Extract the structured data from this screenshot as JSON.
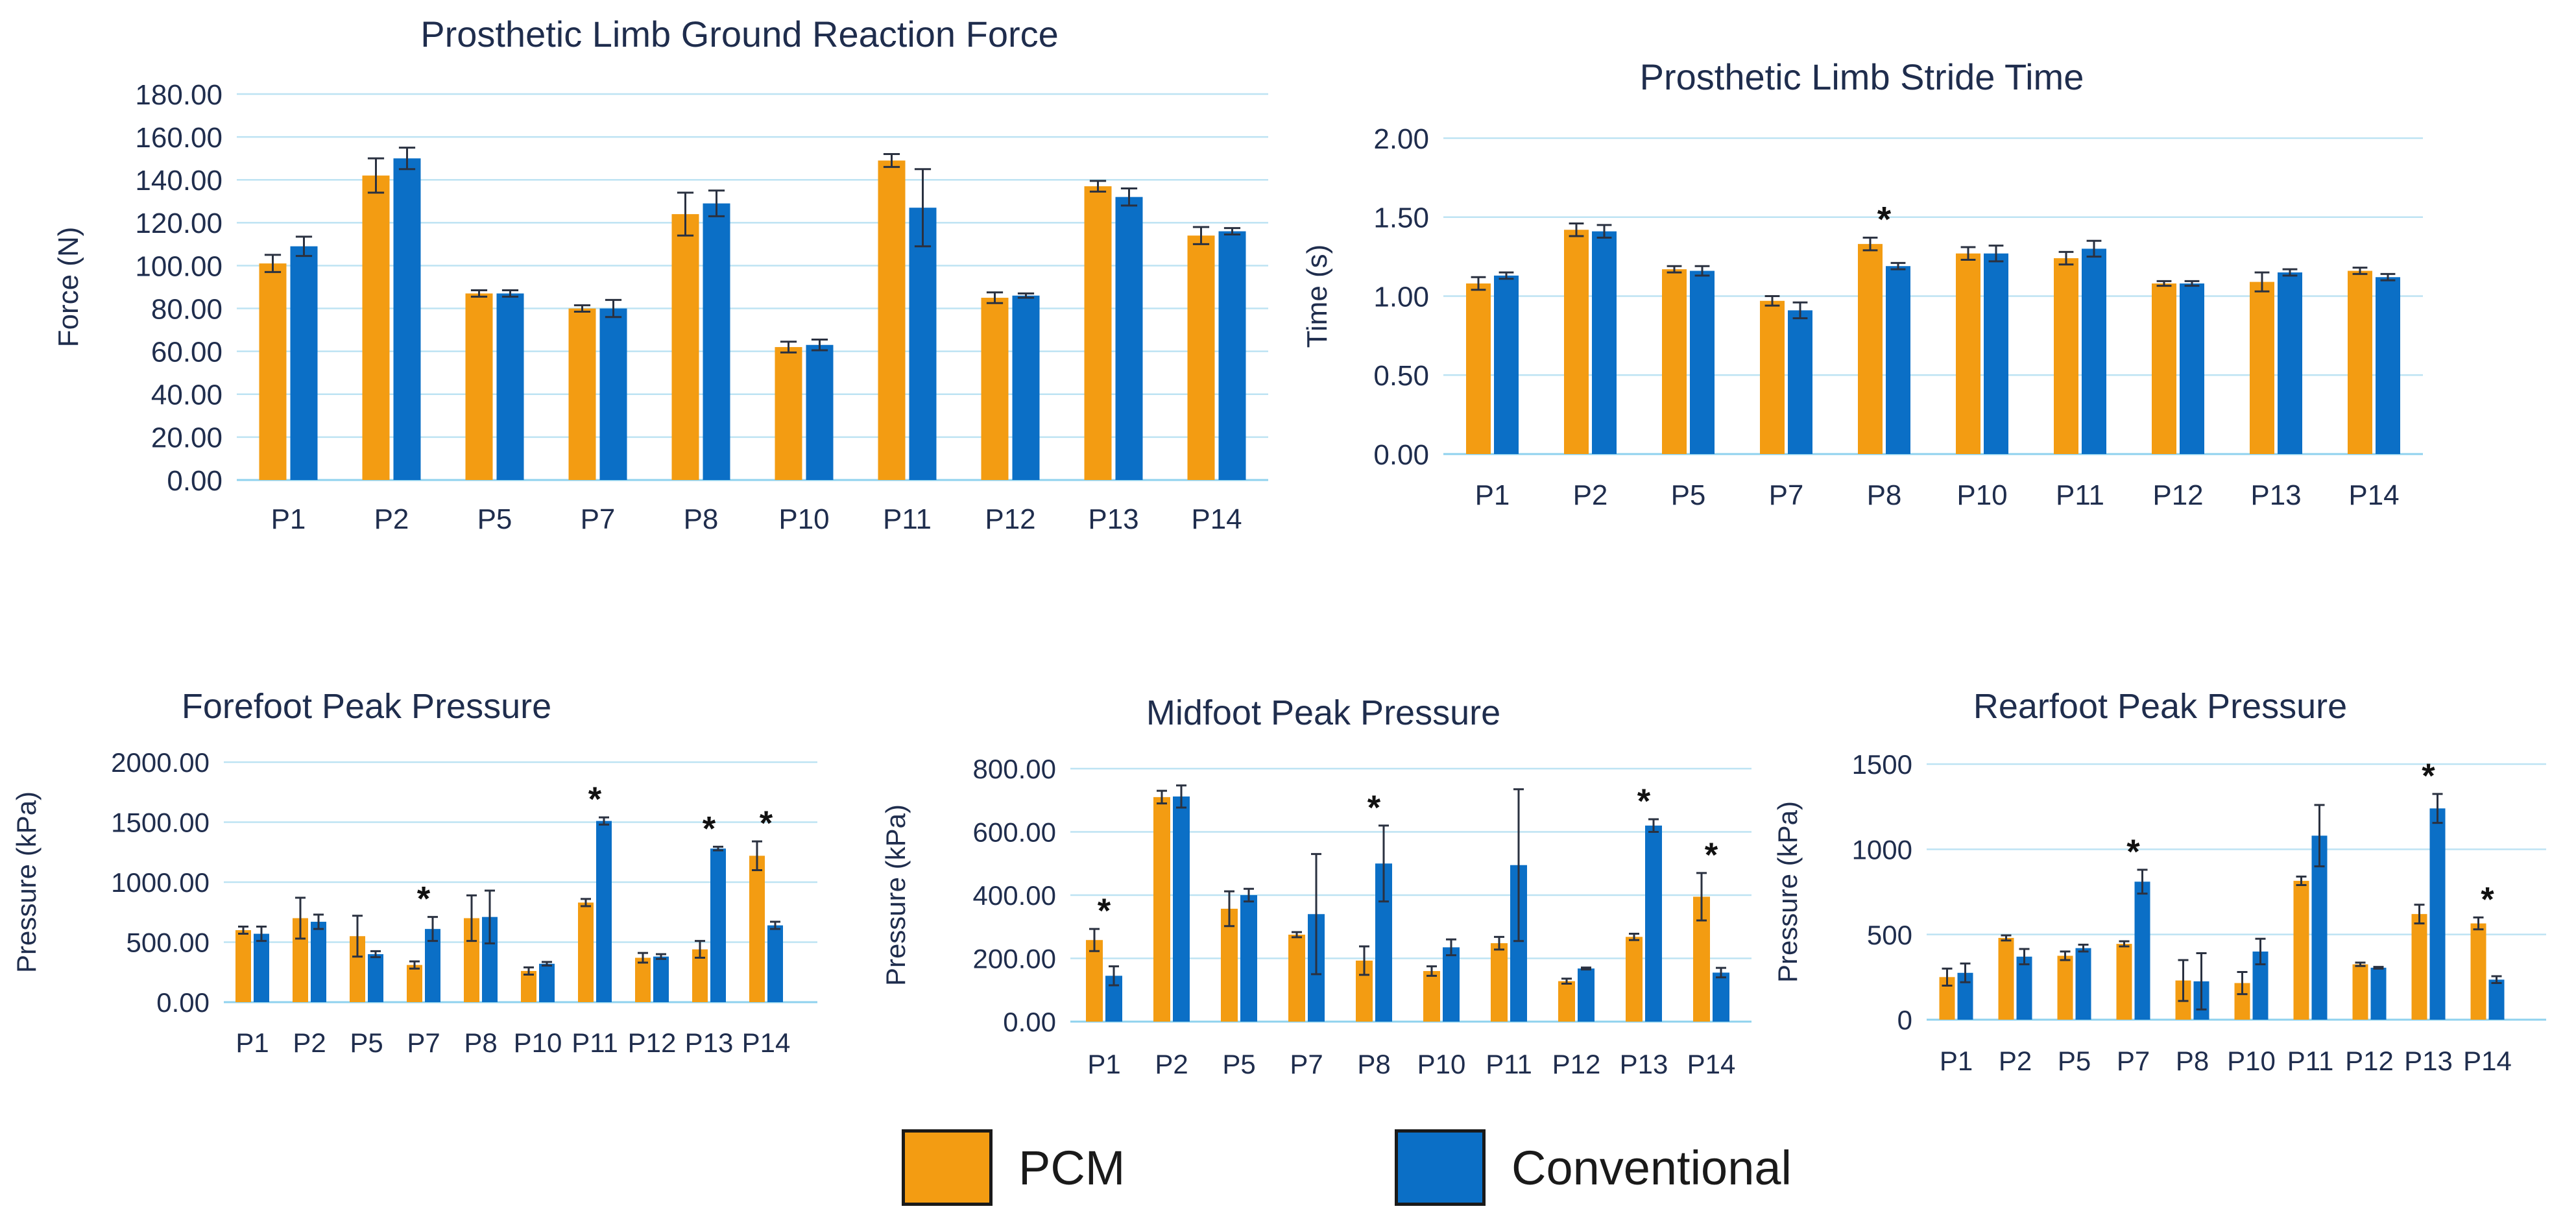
{
  "colors": {
    "PCM": "#f39c12",
    "Conventional": "#0b6fc6"
  },
  "legend": [
    {
      "label": "PCM",
      "color": "#f39c12"
    },
    {
      "label": "Conventional",
      "color": "#0b6fc6"
    }
  ],
  "chart_data": [
    {
      "type": "bar",
      "title": "Prosthetic Limb Ground Reaction Force",
      "ylabel": "Force (N)",
      "xlabel": "",
      "ylim": [
        0,
        180
      ],
      "yticks": [
        "0.00",
        "20.00",
        "40.00",
        "60.00",
        "80.00",
        "100.00",
        "120.00",
        "140.00",
        "160.00",
        "180.00"
      ],
      "categories": [
        "P1",
        "P2",
        "P5",
        "P7",
        "P8",
        "P10",
        "P11",
        "P12",
        "P13",
        "P14"
      ],
      "series": [
        {
          "name": "PCM",
          "values": [
            101,
            142,
            87,
            80,
            124,
            62,
            149,
            85,
            137,
            114
          ],
          "errors": [
            4,
            8,
            1.5,
            1.5,
            10,
            2.5,
            3,
            2.5,
            2.5,
            4
          ]
        },
        {
          "name": "Conventional",
          "values": [
            109,
            150,
            87,
            80,
            129,
            63,
            127,
            86,
            132,
            116
          ],
          "errors": [
            4.5,
            5,
            1.5,
            4,
            6,
            2.5,
            18,
            1,
            4,
            1.5
          ]
        }
      ],
      "significant": []
    },
    {
      "type": "bar",
      "title": "Prosthetic Limb Stride Time",
      "ylabel": "Time (s)",
      "xlabel": "",
      "ylim": [
        0,
        2
      ],
      "yticks": [
        "0.00",
        "0.50",
        "1.00",
        "1.50",
        "2.00"
      ],
      "categories": [
        "P1",
        "P2",
        "P5",
        "P7",
        "P8",
        "P10",
        "P11",
        "P12",
        "P13",
        "P14"
      ],
      "series": [
        {
          "name": "PCM",
          "values": [
            1.08,
            1.42,
            1.17,
            0.97,
            1.33,
            1.27,
            1.24,
            1.08,
            1.09,
            1.16
          ],
          "errors": [
            0.04,
            0.04,
            0.02,
            0.03,
            0.04,
            0.04,
            0.04,
            0.015,
            0.06,
            0.02
          ]
        },
        {
          "name": "Conventional",
          "values": [
            1.13,
            1.41,
            1.16,
            0.91,
            1.19,
            1.27,
            1.3,
            1.08,
            1.15,
            1.12
          ],
          "errors": [
            0.02,
            0.04,
            0.03,
            0.05,
            0.02,
            0.05,
            0.05,
            0.015,
            0.02,
            0.02
          ]
        }
      ],
      "significant": [
        "P8"
      ]
    },
    {
      "type": "bar",
      "title": "Forefoot Peak Pressure",
      "ylabel": "Pressure (kPa)",
      "xlabel": "",
      "ylim": [
        0,
        2000
      ],
      "yticks": [
        "0.00",
        "500.00",
        "1000.00",
        "1500.00",
        "2000.00"
      ],
      "categories": [
        "P1",
        "P2",
        "P5",
        "P7",
        "P8",
        "P10",
        "P11",
        "P12",
        "P13",
        "P14"
      ],
      "series": [
        {
          "name": "PCM",
          "values": [
            600,
            700,
            550,
            310,
            700,
            260,
            830,
            370,
            440,
            1220
          ],
          "errors": [
            30,
            170,
            170,
            30,
            190,
            30,
            30,
            40,
            70,
            120
          ]
        },
        {
          "name": "Conventional",
          "values": [
            570,
            670,
            400,
            610,
            710,
            320,
            1510,
            380,
            1280,
            640
          ],
          "errors": [
            60,
            60,
            25,
            100,
            220,
            15,
            30,
            20,
            15,
            30
          ]
        }
      ],
      "significant": [
        "P7",
        "P11",
        "P13",
        "P14"
      ]
    },
    {
      "type": "bar",
      "title": "Midfoot Peak Pressure",
      "ylabel": "Pressure (kPa)",
      "xlabel": "",
      "ylim": [
        0,
        800
      ],
      "yticks": [
        "0.00",
        "200.00",
        "400.00",
        "600.00",
        "800.00"
      ],
      "categories": [
        "P1",
        "P2",
        "P5",
        "P7",
        "P8",
        "P10",
        "P11",
        "P12",
        "P13",
        "P14"
      ],
      "series": [
        {
          "name": "PCM",
          "values": [
            258,
            710,
            357,
            275,
            193,
            160,
            248,
            128,
            268,
            395
          ],
          "errors": [
            35,
            20,
            55,
            8,
            45,
            15,
            20,
            8,
            10,
            75
          ]
        },
        {
          "name": "Conventional",
          "values": [
            145,
            712,
            400,
            340,
            500,
            235,
            495,
            168,
            620,
            155
          ],
          "errors": [
            30,
            35,
            20,
            190,
            120,
            25,
            240,
            3,
            20,
            15
          ]
        }
      ],
      "significant": [
        "P1",
        "P8",
        "P13",
        "P14"
      ]
    },
    {
      "type": "bar",
      "title": "Rearfoot Peak Pressure",
      "ylabel": "Pressure (kPa)",
      "xlabel": "",
      "ylim": [
        0,
        1500
      ],
      "yticks": [
        "0",
        "500",
        "1000",
        "1500"
      ],
      "categories": [
        "P1",
        "P2",
        "P5",
        "P7",
        "P8",
        "P10",
        "P11",
        "P12",
        "P13",
        "P14"
      ],
      "series": [
        {
          "name": "PCM",
          "values": [
            250,
            480,
            375,
            445,
            230,
            215,
            815,
            325,
            620,
            565
          ],
          "errors": [
            50,
            15,
            25,
            15,
            120,
            65,
            25,
            10,
            55,
            35
          ]
        },
        {
          "name": "Conventional",
          "values": [
            275,
            370,
            420,
            810,
            225,
            400,
            1080,
            305,
            1240,
            235
          ],
          "errors": [
            55,
            45,
            20,
            70,
            165,
            75,
            180,
            5,
            85,
            20
          ]
        }
      ],
      "significant": [
        "P7",
        "P13",
        "P14"
      ]
    }
  ]
}
